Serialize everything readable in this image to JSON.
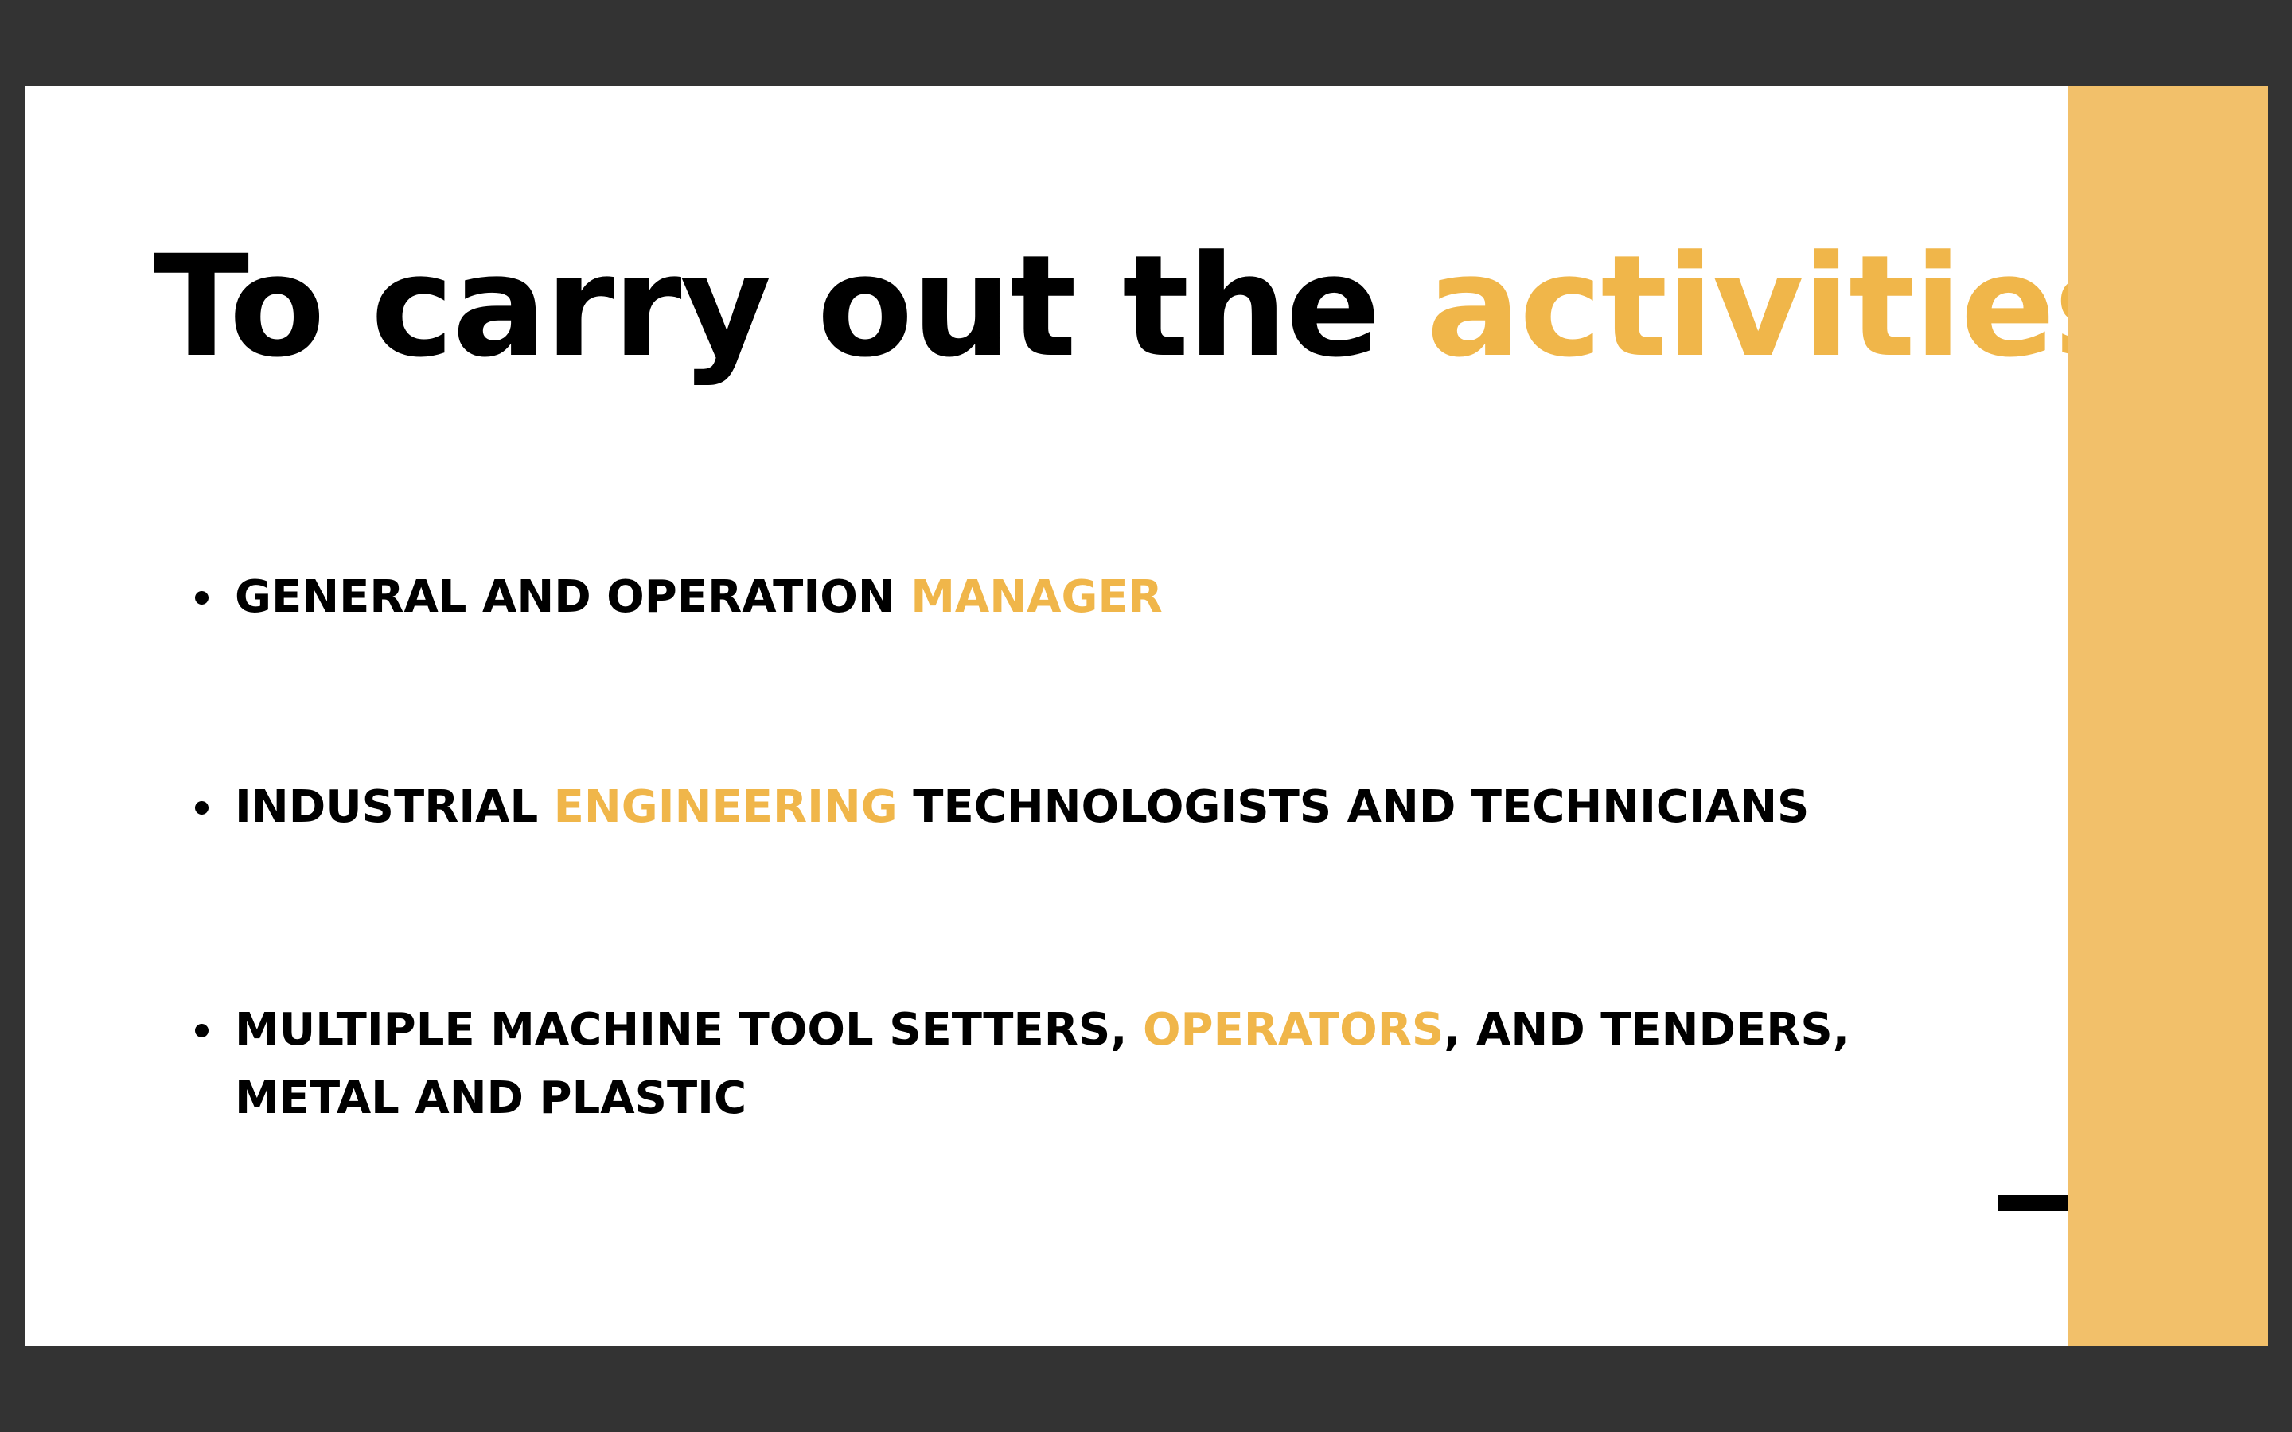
{
  "slide": {
    "title": {
      "main": "To carry out the ",
      "highlight": "activities"
    },
    "bullets": [
      {
        "before": "GENERAL AND OPERATION ",
        "highlight": "MANAGER",
        "after": ""
      },
      {
        "before": "INDUSTRIAL ",
        "highlight": "ENGINEERING",
        "after": " TECHNOLOGISTS AND TECHNICIANS"
      },
      {
        "before": "MULTIPLE MACHINE TOOL SETTERS, ",
        "highlight": "OPERATORS",
        "after": ", AND TENDERS, METAL AND PLASTIC"
      }
    ]
  },
  "colors": {
    "background": "#333333",
    "slide": "#ffffff",
    "text": "#000000",
    "accent": "#F0B64A",
    "side_bar": "#F2C06A"
  }
}
